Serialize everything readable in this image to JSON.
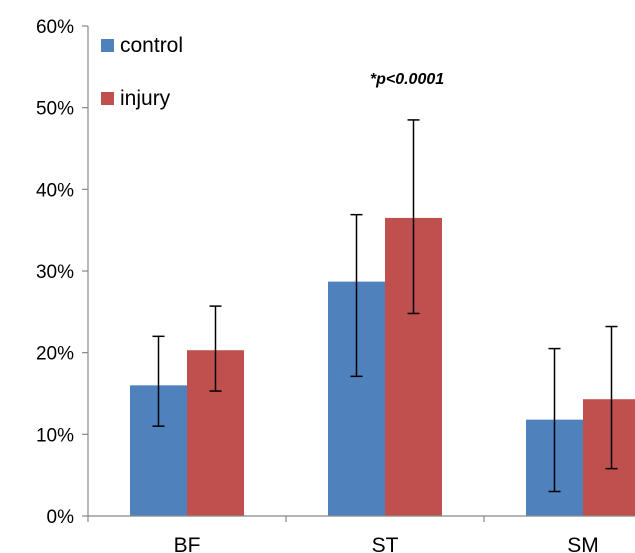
{
  "chart_data": {
    "type": "bar",
    "categories": [
      "BF",
      "ST",
      "SM"
    ],
    "series": [
      {
        "name": "control",
        "color": "#4f81bd",
        "values": [
          16,
          28.7,
          11.8
        ],
        "error": [
          6,
          8.2,
          8.7
        ],
        "error_low": [
          5,
          11.6,
          8.8
        ]
      },
      {
        "name": "injury",
        "color": "#c0504d",
        "values": [
          20.3,
          36.5,
          14.3
        ],
        "error": [
          5.4,
          12,
          8.9
        ],
        "error_low": [
          5,
          11.7,
          8.5
        ]
      }
    ],
    "ylim": [
      0,
      60
    ],
    "yticks": [
      0,
      10,
      20,
      30,
      40,
      50,
      60
    ],
    "ytick_labels": [
      "0%",
      "10%",
      "20%",
      "30%",
      "40%",
      "50%",
      "60%"
    ],
    "grid": false,
    "legend_position": "top-left",
    "annotation": {
      "text": "*p<0.0001",
      "category": "ST"
    },
    "title": "",
    "xlabel": "",
    "ylabel": ""
  }
}
